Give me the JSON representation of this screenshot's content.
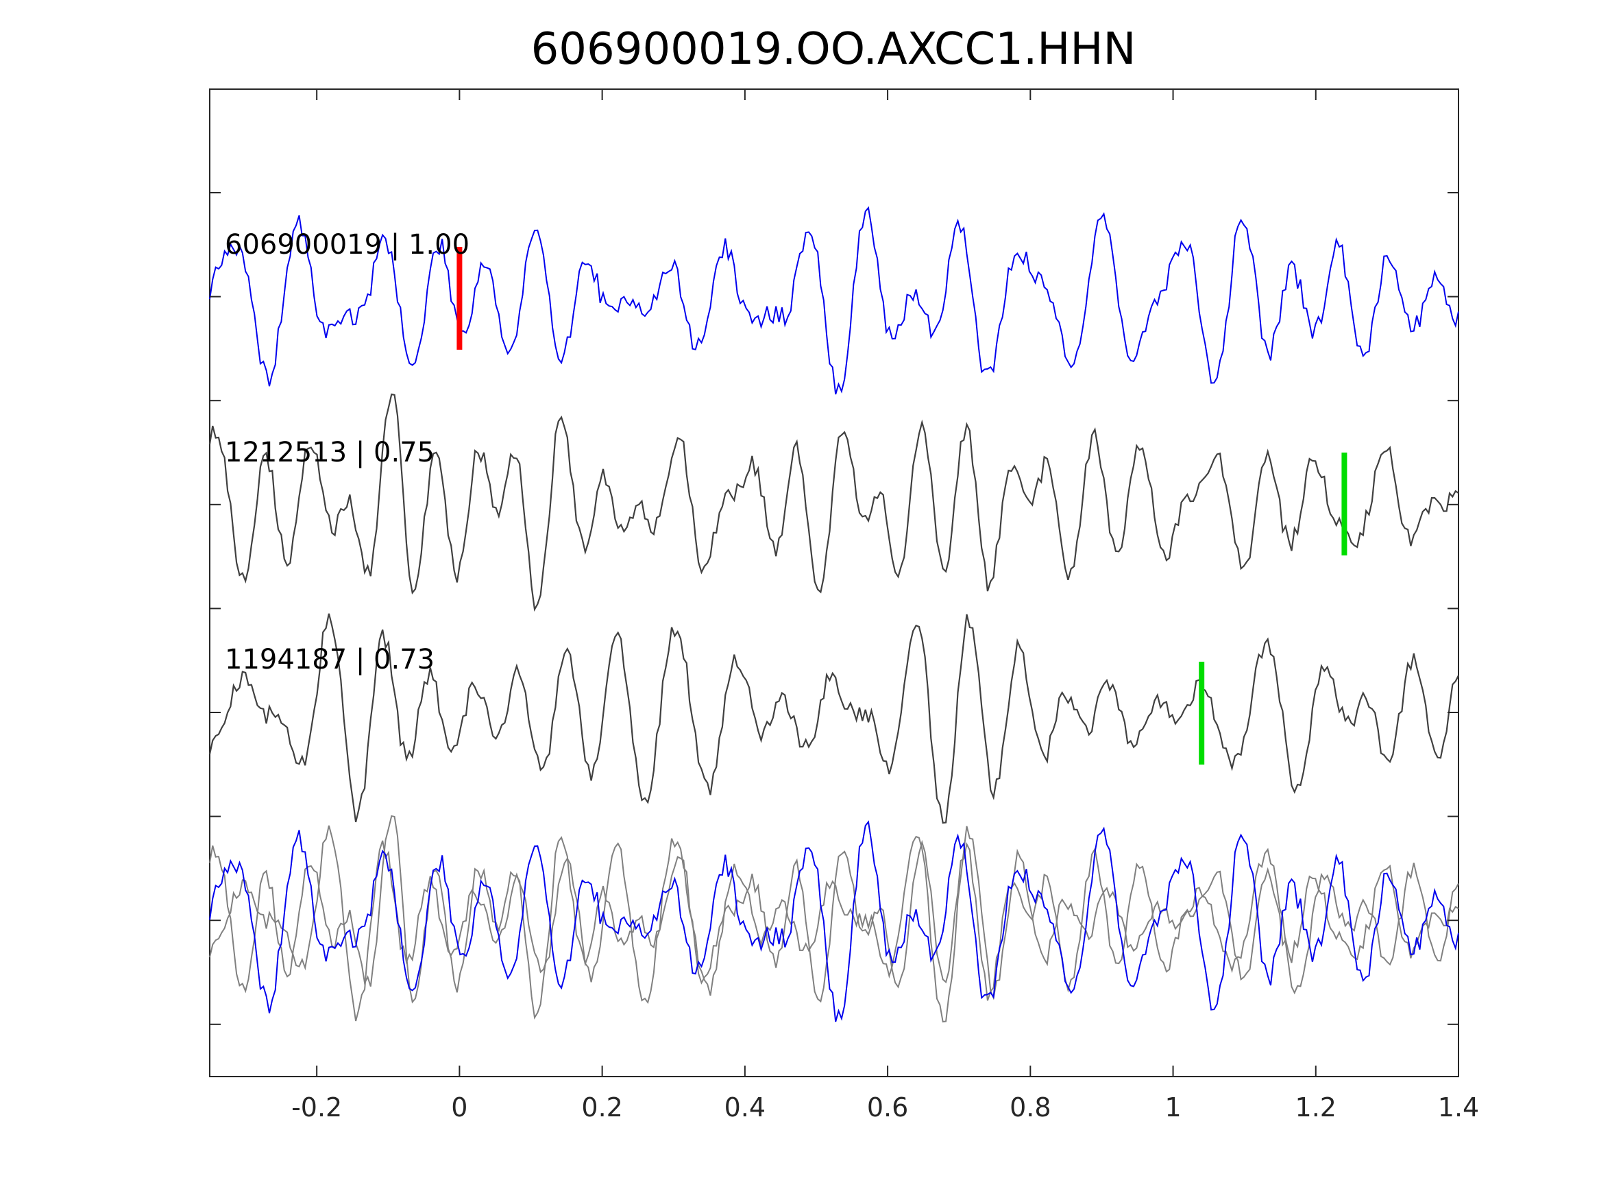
{
  "chart_data": {
    "type": "line",
    "title": "606900019.OO.AXCC1.HHN",
    "xlabel": "",
    "ylabel": "",
    "xlim": [
      -0.35,
      1.4
    ],
    "xticks": [
      -0.2,
      0,
      0.2,
      0.4,
      0.6,
      0.8,
      1,
      1.2,
      1.4
    ],
    "xtick_labels": [
      "-0.2",
      "0",
      "0.2",
      "0.4",
      "0.6",
      "0.8",
      "1",
      "1.2",
      "1.4"
    ],
    "y_ticks_count": 9,
    "grid": false,
    "legend": "none",
    "colors": {
      "target": "#0000ee",
      "template": "#404040",
      "template_overlay": "#808080",
      "reference_pick": "#ff0000",
      "match_pick": "#00dd00",
      "axes": "#262626"
    },
    "traces": [
      {
        "station_id": "606900019",
        "correlation": "1.00",
        "label": "606900019 | 1.00",
        "role": "target",
        "pick_time": 0.0
      },
      {
        "station_id": "1212513",
        "correlation": "0.75",
        "label": "1212513 | 0.75",
        "role": "template",
        "pick_time": 1.24
      },
      {
        "station_id": "1194187",
        "correlation": "0.73",
        "label": "1194187 | 0.73",
        "role": "template",
        "pick_time": 1.04
      }
    ],
    "overlay": {
      "description_free": true,
      "includes": [
        "target",
        "template",
        "template"
      ]
    }
  }
}
